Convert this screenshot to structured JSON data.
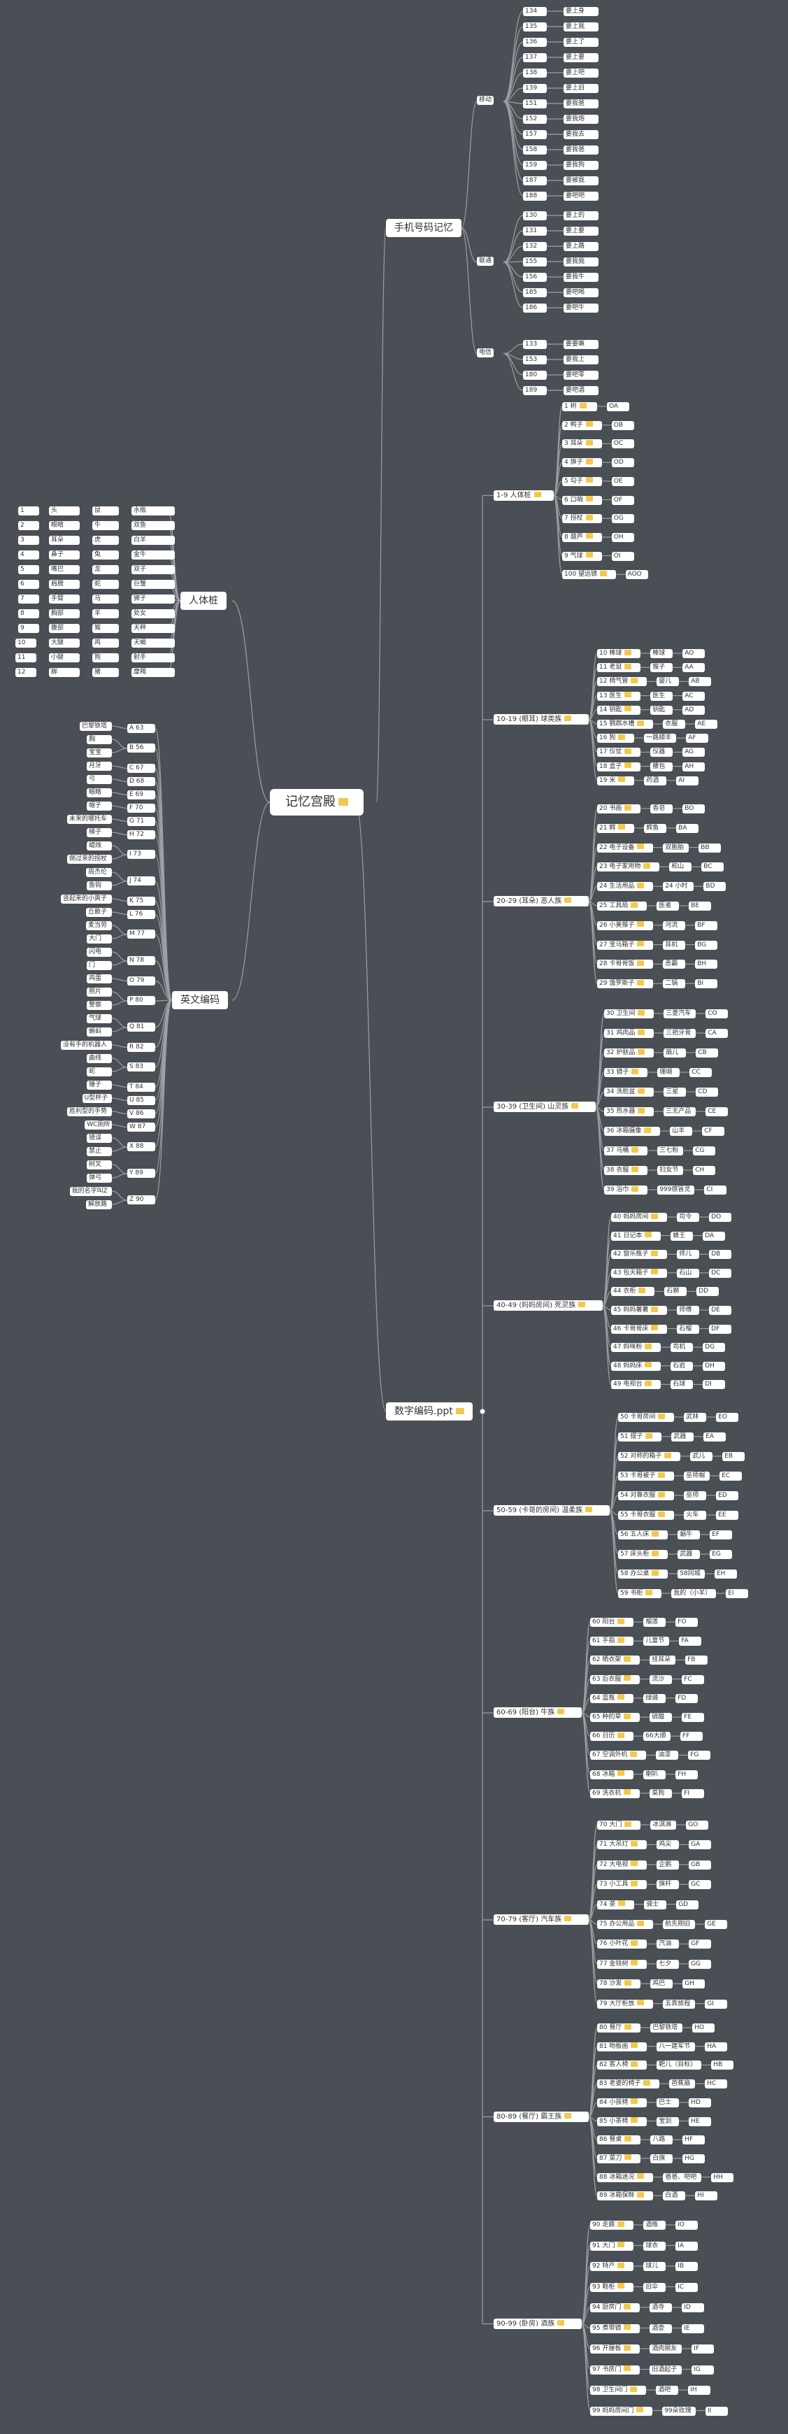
{
  "root": {
    "label": "记忆宫殿",
    "icon": "folder-icon"
  },
  "branches": {
    "phone": {
      "label": "手机号码记忆",
      "groups": [
        {
          "label": "移动",
          "items": [
            "134",
            "135",
            "136",
            "137",
            "138",
            "139",
            "151",
            "152",
            "157",
            "158",
            "159",
            "187",
            "188"
          ],
          "values": [
            "要上身",
            "要上我",
            "要上了",
            "要上要",
            "要上吧",
            "要上旧",
            "要我爸",
            "要我炮",
            "要我去",
            "要我爸",
            "要我狗",
            "要被我",
            "要吧吧"
          ]
        },
        {
          "label": "联通",
          "items": [
            "130",
            "131",
            "132",
            "155",
            "156",
            "185",
            "186"
          ],
          "values": [
            "要上的",
            "要上要",
            "要上路",
            "要我我",
            "要我牛",
            "要吧喝",
            "要吧牛"
          ]
        },
        {
          "label": "电信",
          "items": [
            "133",
            "153",
            "180",
            "189"
          ],
          "values": [
            "要要嘛",
            "要我上",
            "要吧零",
            "要吧酒"
          ]
        }
      ]
    },
    "body": {
      "label": "人体桩",
      "rows": [
        [
          "1",
          "头",
          "鼠",
          "水瓶"
        ],
        [
          "2",
          "眼睛",
          "牛",
          "双鱼"
        ],
        [
          "3",
          "耳朵",
          "虎",
          "白羊"
        ],
        [
          "4",
          "鼻子",
          "兔",
          "金牛"
        ],
        [
          "5",
          "嘴巴",
          "龙",
          "双子"
        ],
        [
          "6",
          "肩膀",
          "蛇",
          "巨蟹"
        ],
        [
          "7",
          "手臂",
          "马",
          "狮子"
        ],
        [
          "8",
          "胸部",
          "羊",
          "处女"
        ],
        [
          "9",
          "腹部",
          "猴",
          "天秤"
        ],
        [
          "10",
          "大腿",
          "鸡",
          "天蝎"
        ],
        [
          "11",
          "小腿",
          "狗",
          "射手"
        ],
        [
          "12",
          "脚",
          "猪",
          "摩羯"
        ]
      ]
    },
    "english": {
      "label": "英文编码",
      "letters": [
        {
          "code": "A 63",
          "items": [
            "巴黎铁塔"
          ]
        },
        {
          "code": "B 56",
          "items": [
            "胸",
            "宝宝"
          ]
        },
        {
          "code": "C 67",
          "items": [
            "月牙"
          ]
        },
        {
          "code": "D 68",
          "items": [
            "弓"
          ]
        },
        {
          "code": "E 69",
          "items": [
            "眼睛"
          ]
        },
        {
          "code": "F 70",
          "items": [
            "帽子"
          ]
        },
        {
          "code": "G 71",
          "items": [
            "未来的哪托车"
          ]
        },
        {
          "code": "H 72",
          "items": [
            "梯子"
          ]
        },
        {
          "code": "I 73",
          "items": [
            "蜡烛",
            "倒过来的拐杖"
          ]
        },
        {
          "code": "J 74",
          "items": [
            "周杰伦",
            "鱼钩"
          ]
        },
        {
          "code": "K 75",
          "items": [
            "竖起来的小爽子"
          ]
        },
        {
          "code": "L 76",
          "items": [
            "丘散子"
          ]
        },
        {
          "code": "M 77",
          "items": [
            "麦当劳",
            "大门"
          ]
        },
        {
          "code": "N 78",
          "items": [
            "闪电",
            "门"
          ]
        },
        {
          "code": "O 79",
          "items": [
            "鸡蛋"
          ]
        },
        {
          "code": "P 80",
          "items": [
            "照片",
            "警察"
          ]
        },
        {
          "code": "Q 81",
          "items": [
            "气球",
            "蝌蚪"
          ]
        },
        {
          "code": "R 82",
          "items": [
            "没有手的机器人"
          ]
        },
        {
          "code": "S 83",
          "items": [
            "曲线",
            "蛇"
          ]
        },
        {
          "code": "T 84",
          "items": [
            "锤子"
          ]
        },
        {
          "code": "U 85",
          "items": [
            "U型杯子"
          ]
        },
        {
          "code": "V 86",
          "items": [
            "胜利型的手势"
          ]
        },
        {
          "code": "W 87",
          "items": [
            "WC厕所"
          ]
        },
        {
          "code": "X 88",
          "items": [
            "错误",
            "禁止"
          ]
        },
        {
          "code": "Y 89",
          "items": [
            "树叉",
            "弹弓"
          ]
        },
        {
          "code": "Z 90",
          "items": [
            "我的名字叫Z",
            "解放路"
          ]
        }
      ]
    },
    "numbers": {
      "label": "数字编码.ppt",
      "groups": [
        {
          "label": "1-9 人体桩",
          "items": [
            [
              "1 树",
              "OA"
            ],
            [
              "2 鸭子",
              "OB"
            ],
            [
              "3 耳朵",
              "OC"
            ],
            [
              "4 旗子",
              "OD"
            ],
            [
              "5 勾子",
              "OE"
            ],
            [
              "6 口哨",
              "OF"
            ],
            [
              "7 拐杖",
              "OG"
            ],
            [
              "8 葫芦",
              "OH"
            ],
            [
              "9 气球",
              "OI"
            ],
            [
              "100 望远镜",
              "AOO"
            ]
          ]
        },
        {
          "label": "10-19 (眼耳) 球类族",
          "items": [
            [
              "10 棒球",
              "棒球",
              "AO"
            ],
            [
              "11 老鼠",
              "猴子",
              "AA"
            ],
            [
              "12 椅气管",
              "婴儿",
              "AB"
            ],
            [
              "13 医生",
              "医生",
              "AC"
            ],
            [
              "14 钥匙",
              "钥匙",
              "AD"
            ],
            [
              "15 鹦鹉水槽",
              "衣服",
              "AE"
            ],
            [
              "16 狗",
              "一路顺丰",
              "AF"
            ],
            [
              "17 仪仗",
              "仪器",
              "AG"
            ],
            [
              "18 盒子",
              "腰包",
              "AH"
            ],
            [
              "19 米",
              "药酒",
              "AI"
            ]
          ]
        },
        {
          "label": "20-29 (耳朵) 恶人族",
          "items": [
            [
              "20 书画",
              "香皂",
              "BO"
            ],
            [
              "21 鳄",
              "鳄鱼",
              "BA"
            ],
            [
              "22 电子设备",
              "双胞胎",
              "BB"
            ],
            [
              "23 电子家用物",
              "和山",
              "BC"
            ],
            [
              "24 生活用品",
              "24 小时",
              "BD"
            ],
            [
              "25 工具局",
              "医者",
              "BE"
            ],
            [
              "26 小美猴子",
              "河流",
              "BF"
            ],
            [
              "27 宝马箱子",
              "耳机",
              "BG"
            ],
            [
              "28 卡哥哥饭",
              "恶霸",
              "BH"
            ],
            [
              "29 饿罗斯子",
              "二锅",
              "BI"
            ]
          ]
        },
        {
          "label": "30-39 (卫生间) 山灵族",
          "items": [
            [
              "30 卫生间",
              "三菱汽车",
              "CO"
            ],
            [
              "31 鸡肉品",
              "三把牙膏",
              "CA"
            ],
            [
              "32 护肤品",
              "扇儿",
              "CB"
            ],
            [
              "33 镜子",
              "珊瑚",
              "CC"
            ],
            [
              "34 洗脸盆",
              "三星",
              "CD"
            ],
            [
              "35 热水器",
              "三无产品",
              "CE"
            ],
            [
              "36 冰箱摄像",
              "山羊",
              "CF"
            ],
            [
              "37 马桶",
              "三七粉",
              "CG"
            ],
            [
              "38 衣服",
              "妇女节",
              "CH"
            ],
            [
              "39 浴巾",
              "999感冒灵",
              "CI"
            ]
          ]
        },
        {
          "label": "40-49 (妈妈房间) 死灵族",
          "items": [
            [
              "40 妈妈房间",
              "司令",
              "DO"
            ],
            [
              "41 日记本",
              "蜂王",
              "DA"
            ],
            [
              "42 窗乐瓶子",
              "师儿",
              "DB"
            ],
            [
              "43 包天箱子",
              "石山",
              "DC"
            ],
            [
              "44 衣柜",
              "石狮",
              "DD"
            ],
            [
              "45 妈妈薯薯",
              "师傅",
              "DE"
            ],
            [
              "46 卡哥哥床",
              "石榴",
              "DF"
            ],
            [
              "47 妈咪粉",
              "司机",
              "DG"
            ],
            [
              "48 妈妈床",
              "石岩",
              "DH"
            ],
            [
              "49 电视台",
              "石球",
              "DI"
            ]
          ]
        },
        {
          "label": "50-59 (卡哥的房间) 温柔族",
          "items": [
            [
              "50 卡哥房间",
              "武林",
              "EO"
            ],
            [
              "51 摆子",
              "武器",
              "EA"
            ],
            [
              "52 对称的箱子",
              "武儿",
              "EB"
            ],
            [
              "53 卡哥被子",
              "巫师帽",
              "EC"
            ],
            [
              "54 对靠衣服",
              "巫师",
              "ED"
            ],
            [
              "55 卡哥衣服",
              "火车",
              "EE"
            ],
            [
              "56 五人床",
              "蜗牛",
              "EF"
            ],
            [
              "57 床头柜",
              "武器",
              "EG"
            ],
            [
              "58 办公桌",
              "58同城",
              "EH"
            ],
            [
              "59 书柜",
              "我的（小羊）",
              "EI"
            ]
          ]
        },
        {
          "label": "60-69 (阳台) 牛族",
          "items": [
            [
              "60 阳台",
              "榴莲",
              "FO"
            ],
            [
              "61 手指",
              "儿童节",
              "FA"
            ],
            [
              "62 晒衣架",
              "挂耳朵",
              "FB"
            ],
            [
              "63 后衣服",
              "流沙",
              "FC"
            ],
            [
              "64 蓝瓶",
              "绿骑",
              "FD"
            ],
            [
              "65 种的草",
              "硫酸",
              "FE"
            ],
            [
              "66 日历",
              "66大顺",
              "FF"
            ],
            [
              "67 空调外机",
              "油漆",
              "FG"
            ],
            [
              "68 冰箱",
              "喇叭",
              "FH"
            ],
            [
              "69 洗衣机",
              "菜狗",
              "FI"
            ]
          ]
        },
        {
          "label": "70-79 (客厅) 汽车族",
          "items": [
            [
              "70 大门",
              "冰淇淋",
              "GO"
            ],
            [
              "71 大吊灯",
              "鸡尖",
              "GA"
            ],
            [
              "72 大电视",
              "企鹅",
              "GB"
            ],
            [
              "73 小工具",
              "旗杆",
              "GC"
            ],
            [
              "74 茶",
              "骑士",
              "GD"
            ],
            [
              "75 办公用品",
              "航先刚旧",
              "GE"
            ],
            [
              "76 小叶花",
              "汽油",
              "GF"
            ],
            [
              "77 金钱树",
              "七夕",
              "GG"
            ],
            [
              "78 沙发",
              "鸡巴",
              "GH"
            ],
            [
              "79 大厅柜放",
              "五奔旅程",
              "GI"
            ]
          ]
        },
        {
          "label": "80-89 (餐厅) 霸王族",
          "items": [
            [
              "80 餐厅",
              "巴黎铁塔",
              "HO"
            ],
            [
              "81 吻板画",
              "八一建军节",
              "HA"
            ],
            [
              "82 客人椅",
              "靶儿（目标）",
              "HB"
            ],
            [
              "83 老婆的椅子",
              "芭蕉扇",
              "HC"
            ],
            [
              "84 小孩椅",
              "巴士",
              "HD"
            ],
            [
              "85 小茶椅",
              "宝剑",
              "HE"
            ],
            [
              "86 餐桌",
              "八路",
              "HF"
            ],
            [
              "87 菜刀",
              "白旗",
              "HG"
            ],
            [
              "88 冰箱迷况",
              "爸爸、吧吧",
              "HH"
            ],
            [
              "89 冰箱保鲜",
              "白酒",
              "HI"
            ]
          ]
        },
        {
          "label": "90-99 (卧房) 酒族",
          "items": [
            [
              "90 走廊",
              "酒瓶",
              "IO"
            ],
            [
              "91 大门",
              "球衣",
              "IA"
            ],
            [
              "92 特产",
              "球儿",
              "IB"
            ],
            [
              "93 鞋柜",
              "旧伞",
              "IC"
            ],
            [
              "94 厨房门",
              "酒寺",
              "ID"
            ],
            [
              "95 煮带镜",
              "酒壶",
              "IE"
            ],
            [
              "96 开履板",
              "酒肉朋友",
              "IF"
            ],
            [
              "97 书房门",
              "旧酒起子",
              "IG"
            ],
            [
              "98 卫生间门",
              "酒吧",
              "IH"
            ],
            [
              "99 妈妈房间门",
              "99朵玫瑰",
              "II"
            ]
          ]
        }
      ]
    }
  },
  "colors": {
    "background": "#4a4f55",
    "node": "#ffffff",
    "line": "#9aa0a6",
    "folder": "#f2c94c"
  }
}
